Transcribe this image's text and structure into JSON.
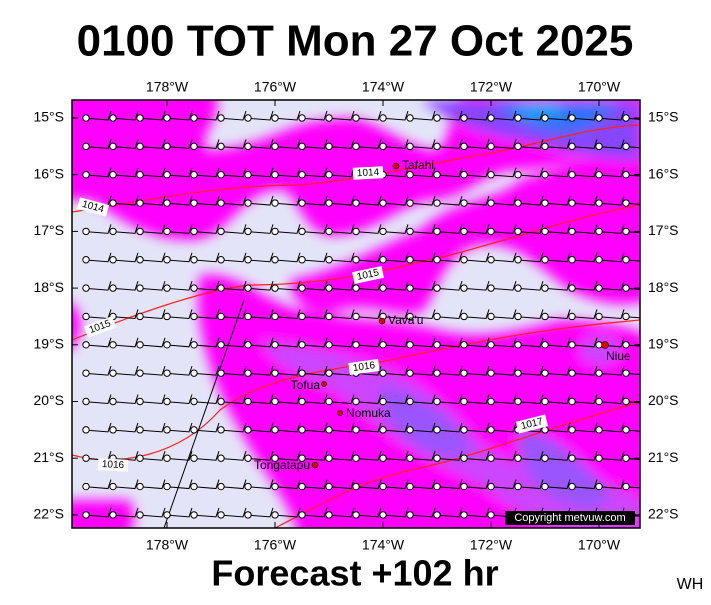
{
  "header": {
    "title": "0100 TOT Mon 27 Oct 2025"
  },
  "axes": {
    "lon_ticks": [
      "178°W",
      "176°W",
      "174°W",
      "172°W",
      "170°W"
    ],
    "lat_ticks": [
      "15°S",
      "16°S",
      "17°S",
      "18°S",
      "19°S",
      "20°S",
      "21°S",
      "22°S"
    ]
  },
  "places": [
    {
      "label": "Tafahi"
    },
    {
      "label": "Vava'u"
    },
    {
      "label": "Niue"
    },
    {
      "label": "Tofua"
    },
    {
      "label": "Nomuka"
    },
    {
      "label": "Tongatapu"
    }
  ],
  "isobars": [
    {
      "label": "1014"
    },
    {
      "label": "1014"
    },
    {
      "label": "1015"
    },
    {
      "label": "1015"
    },
    {
      "label": "1016"
    },
    {
      "label": "1016"
    },
    {
      "label": "1017"
    }
  ],
  "copyright": "Copyright metvuw.com",
  "footer": {
    "forecast": "Forecast +102 hr",
    "initials": "WH"
  }
}
